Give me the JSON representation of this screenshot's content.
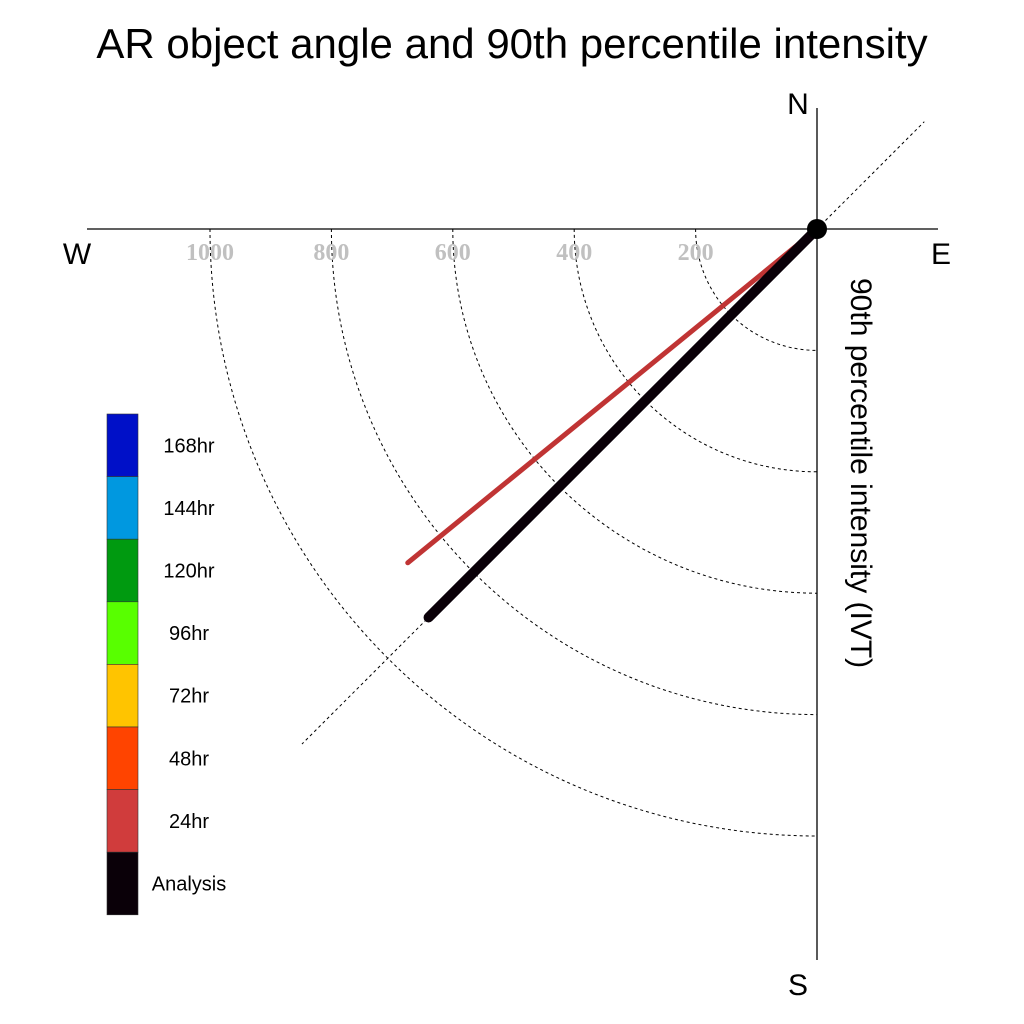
{
  "chart_data": {
    "type": "polar-vector",
    "title": "AR object angle and 90th percentile intensity",
    "ylabel": "90th percentile intensity (IVT)",
    "compass": {
      "north": "N",
      "south": "S",
      "east": "E",
      "west": "W"
    },
    "radial_ticks": [
      200,
      400,
      600,
      800,
      1000
    ],
    "radial_tick_labels": [
      "200",
      "400",
      "600",
      "800",
      "1000"
    ],
    "rmax": 1200,
    "dotted_rays_deg": [
      45,
      225
    ],
    "legend": [
      {
        "label": "168hr",
        "color": "#0010c8"
      },
      {
        "label": "144hr",
        "color": "#0098e0"
      },
      {
        "label": "120hr",
        "color": "#009a10"
      },
      {
        "label": "96hr",
        "color": "#58ff00"
      },
      {
        "label": "72hr",
        "color": "#ffc400"
      },
      {
        "label": "48hr",
        "color": "#ff4400"
      },
      {
        "label": "24hr",
        "color": "#d03c3c"
      },
      {
        "label": "Analysis",
        "color": "#0a0008"
      }
    ],
    "series": [
      {
        "name": "Analysis",
        "color": "#0a0008",
        "intensity": 905,
        "bearing_deg": 225
      },
      {
        "name": "24hr",
        "color": "#c03434",
        "intensity": 870,
        "bearing_deg": 230.8
      }
    ]
  }
}
